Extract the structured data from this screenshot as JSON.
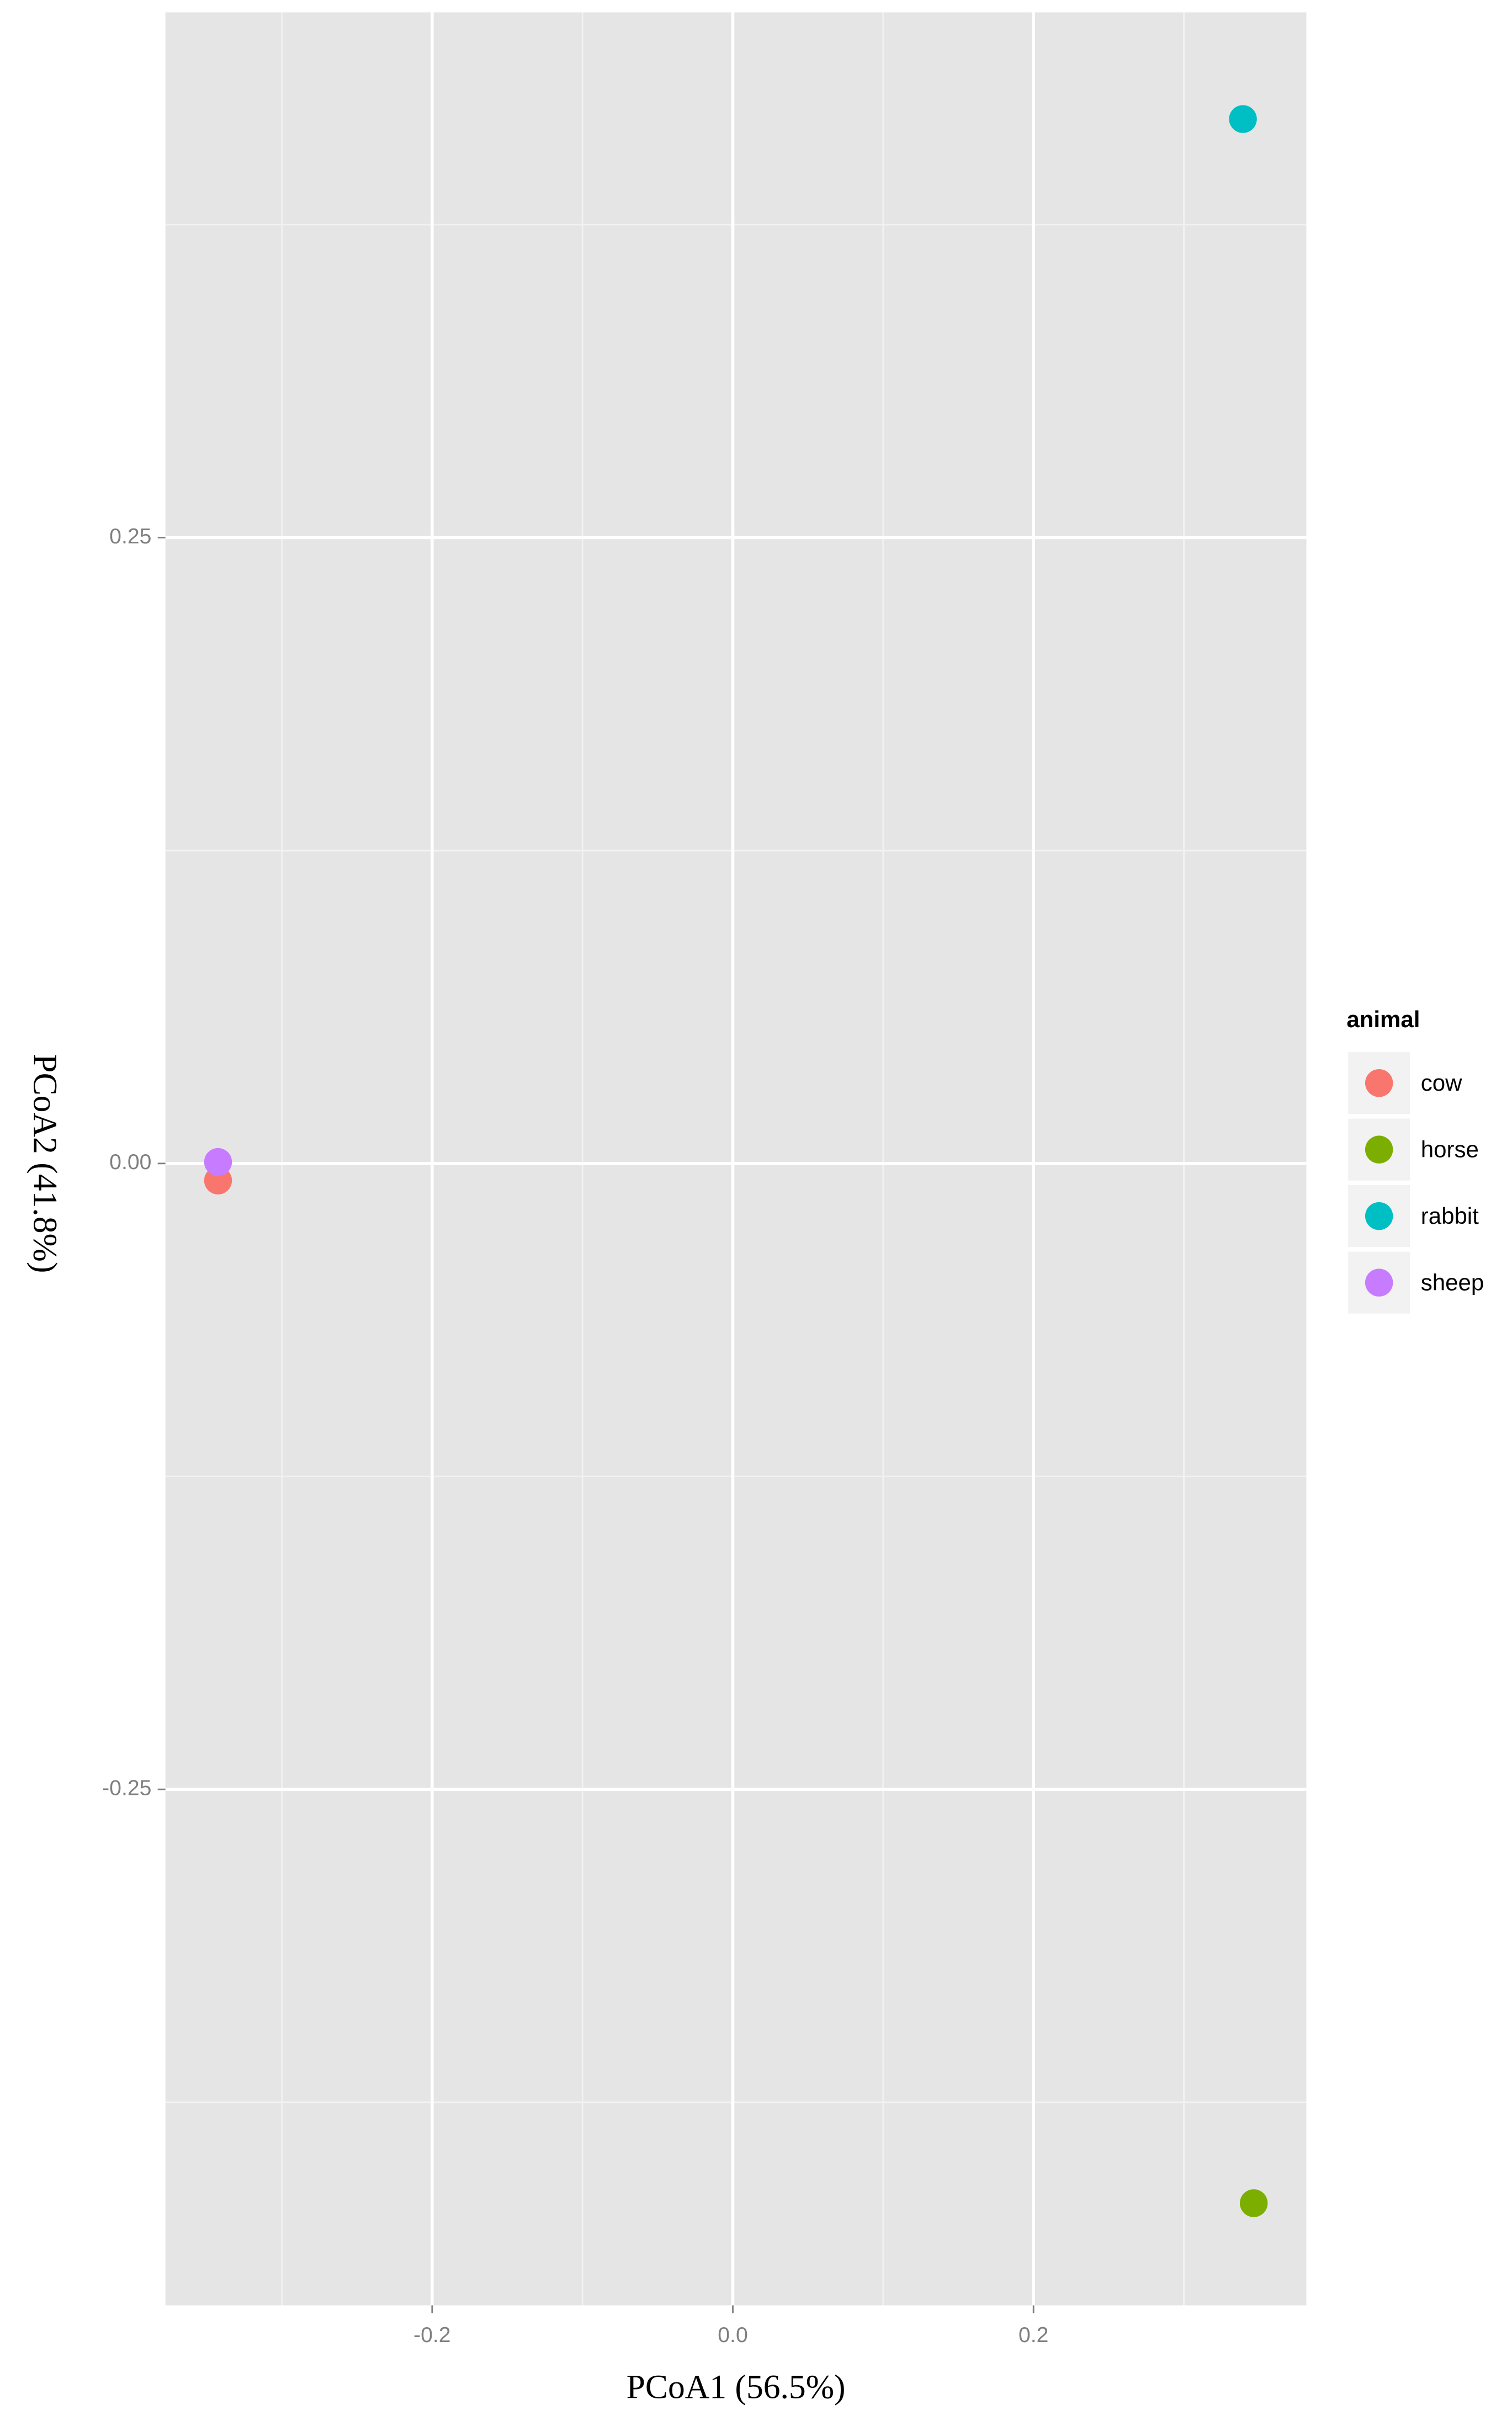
{
  "chart_data": {
    "type": "scatter",
    "x_label": "PCoA1 (56.5%)",
    "y_label": "PCoA2 (41.8%)",
    "legend_title": "animal",
    "xlim": [
      -0.3774,
      0.3815
    ],
    "ylim": [
      -0.4561,
      0.4598
    ],
    "xticks": [
      -0.2,
      {
        "value": 0,
        "label": "0.0"
      },
      0.2
    ],
    "yticks": [
      -0.25,
      {
        "value": 0,
        "label": "0.00"
      },
      0.25
    ],
    "x_minor_ticks": [
      -0.3,
      -0.1,
      0.1,
      0.3
    ],
    "y_minor_ticks": [
      -0.375,
      -0.125,
      0.125,
      0.375
    ],
    "grid": true,
    "legend_position": "right",
    "series": [
      {
        "name": "cow",
        "color": "#f8766d",
        "x": [
          -0.3424
        ],
        "values": [
          -0.0068
        ]
      },
      {
        "name": "horse",
        "color": "#7cae00",
        "x": [
          0.3465
        ],
        "values": [
          -0.4153
        ]
      },
      {
        "name": "rabbit",
        "color": "#00bfc4",
        "x": [
          0.3393
        ],
        "values": [
          0.4172
        ]
      },
      {
        "name": "sheep",
        "color": "#c77cff",
        "x": [
          -0.3424
        ],
        "values": [
          0.0006
        ]
      }
    ]
  }
}
